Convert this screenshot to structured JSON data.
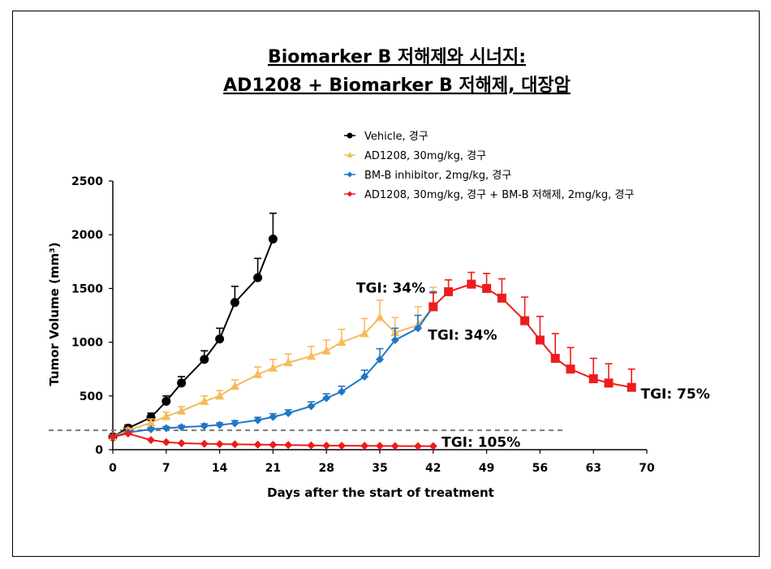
{
  "chart_data": {
    "type": "line",
    "title_lines": [
      "Biomarker B 저해제와 시너지:",
      "AD1208 + Biomarker B 저해제, 대장암"
    ],
    "xlabel": "Days after the start of treatment",
    "ylabel": "Tumor Volume (mm³)",
    "xlim": [
      0,
      70
    ],
    "ylim": [
      0,
      2500
    ],
    "xticks": [
      0,
      7,
      14,
      21,
      28,
      35,
      42,
      49,
      56,
      63,
      70
    ],
    "yticks": [
      0,
      500,
      1000,
      1500,
      2000,
      2500
    ],
    "reference_line": {
      "y": 180
    },
    "legend_position": "top-right",
    "series": [
      {
        "name": "Vehicle, 경구",
        "color": "#000000",
        "marker": "circle",
        "x": [
          0,
          2,
          5,
          7,
          9,
          12,
          14,
          16,
          19,
          21
        ],
        "y": [
          120,
          200,
          300,
          450,
          620,
          840,
          1030,
          1370,
          1600,
          1960
        ],
        "err": [
          15,
          30,
          40,
          50,
          60,
          80,
          100,
          150,
          180,
          240
        ]
      },
      {
        "name": "AD1208, 30mg/kg, 경구",
        "color": "#F8BA5A",
        "marker": "triangle",
        "x": [
          0,
          2,
          5,
          7,
          9,
          12,
          14,
          16,
          19,
          21,
          23,
          26,
          28,
          30,
          33,
          35,
          37,
          40,
          42
        ],
        "y": [
          120,
          180,
          250,
          310,
          360,
          450,
          500,
          590,
          700,
          760,
          810,
          870,
          920,
          1000,
          1080,
          1230,
          1090,
          1160,
          1330
        ],
        "err": [
          15,
          20,
          35,
          40,
          40,
          50,
          50,
          60,
          70,
          80,
          80,
          90,
          100,
          120,
          140,
          160,
          140,
          170,
          180
        ]
      },
      {
        "name": "BM-B inhibitor, 2mg/kg, 경구",
        "color": "#1F77C4",
        "marker": "diamond",
        "x": [
          0,
          2,
          5,
          7,
          9,
          12,
          14,
          16,
          19,
          21,
          23,
          26,
          28,
          30,
          33,
          35,
          37,
          40,
          42
        ],
        "y": [
          120,
          160,
          190,
          200,
          210,
          220,
          230,
          245,
          275,
          305,
          340,
          405,
          480,
          540,
          680,
          840,
          1020,
          1130,
          1330
        ],
        "err": [
          10,
          15,
          15,
          15,
          15,
          20,
          20,
          25,
          25,
          30,
          30,
          40,
          40,
          50,
          60,
          100,
          110,
          120,
          140
        ]
      },
      {
        "name": "AD1208, 30mg/kg, 경구 + BM-B 저해제, 2mg/kg, 경구",
        "color": "#EE1C1C",
        "marker": "diamond",
        "x": [
          0,
          2,
          5,
          7,
          9,
          12,
          14,
          16,
          19,
          21,
          23,
          26,
          28,
          30,
          33,
          35,
          37,
          40,
          42
        ],
        "y": [
          120,
          150,
          90,
          70,
          60,
          55,
          52,
          50,
          47,
          45,
          43,
          40,
          38,
          37,
          36,
          35,
          34,
          33,
          33
        ],
        "err": [
          0,
          0,
          0,
          0,
          0,
          0,
          0,
          0,
          0,
          0,
          0,
          0,
          0,
          0,
          0,
          0,
          0,
          0,
          0
        ]
      },
      {
        "name": "",
        "color": "#EE1C1C",
        "marker": "square",
        "x": [
          42,
          44,
          47,
          49,
          51,
          54,
          56,
          58,
          60,
          63,
          65,
          68
        ],
        "y": [
          1330,
          1470,
          1540,
          1500,
          1410,
          1200,
          1020,
          850,
          750,
          660,
          620,
          580
        ],
        "err": [
          130,
          110,
          110,
          140,
          180,
          220,
          220,
          230,
          200,
          190,
          180,
          170
        ]
      }
    ],
    "annotations": [
      {
        "text": "TGI: 34%",
        "x": 31.9,
        "y": 1505
      },
      {
        "text": "TGI: 34%",
        "x": 41.3,
        "y": 1070
      },
      {
        "text": "TGI: 75%",
        "x": 69.2,
        "y": 520
      },
      {
        "text": "TGI: 105%",
        "x": 43.1,
        "y": 70
      }
    ]
  }
}
